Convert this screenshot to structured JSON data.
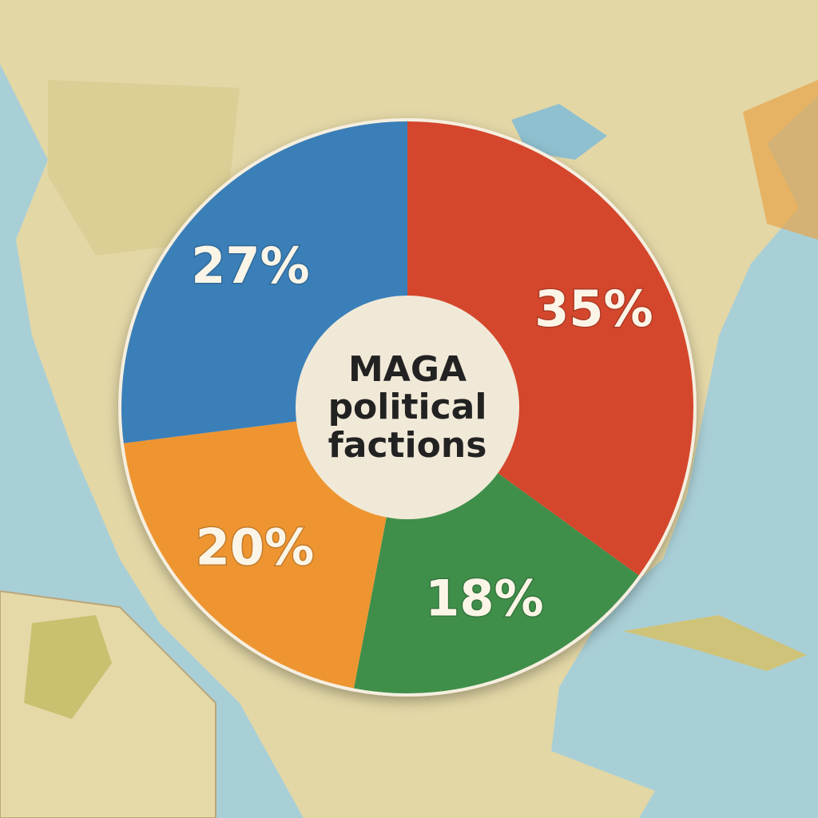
{
  "chart_data": {
    "type": "pie",
    "title": "MAGA political factions",
    "values": [
      35,
      18,
      20,
      27
    ],
    "value_labels": [
      "35%",
      "18%",
      "20%",
      "27%"
    ],
    "colors": [
      "#d4472c",
      "#3f8f4a",
      "#ee9531",
      "#3b7fb8"
    ]
  }
}
